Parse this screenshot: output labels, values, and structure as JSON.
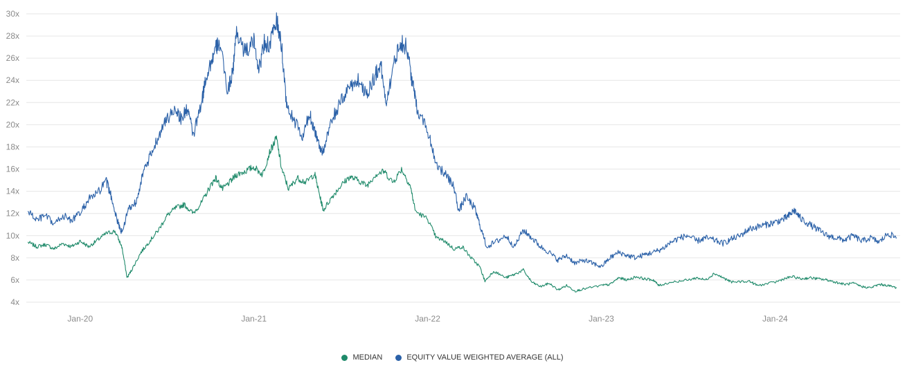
{
  "chart_data": {
    "type": "line",
    "title": "",
    "xlabel": "",
    "ylabel": "",
    "ylim": [
      4,
      30
    ],
    "xlim": [
      2019.69,
      2024.72
    ],
    "grid": true,
    "legend_position": "bottom-center",
    "y_ticks": [
      {
        "value": 4,
        "label": "4x"
      },
      {
        "value": 6,
        "label": "6x"
      },
      {
        "value": 8,
        "label": "8x"
      },
      {
        "value": 10,
        "label": "10x"
      },
      {
        "value": 12,
        "label": "12x"
      },
      {
        "value": 14,
        "label": "14x"
      },
      {
        "value": 16,
        "label": "16x"
      },
      {
        "value": 18,
        "label": "18x"
      },
      {
        "value": 20,
        "label": "20x"
      },
      {
        "value": 22,
        "label": "22x"
      },
      {
        "value": 24,
        "label": "24x"
      },
      {
        "value": 26,
        "label": "26x"
      },
      {
        "value": 28,
        "label": "28x"
      },
      {
        "value": 30,
        "label": "30x"
      }
    ],
    "x_ticks": [
      {
        "value": 2020.0,
        "label": "Jan-20"
      },
      {
        "value": 2021.0,
        "label": "Jan-21"
      },
      {
        "value": 2022.0,
        "label": "Jan-22"
      },
      {
        "value": 2023.0,
        "label": "Jan-23"
      },
      {
        "value": 2024.0,
        "label": "Jan-24"
      }
    ],
    "series": [
      {
        "name": "MEDIAN",
        "color": "#1f8a6a",
        "points": [
          [
            2019.7,
            9.4
          ],
          [
            2019.75,
            9.0
          ],
          [
            2019.8,
            9.2
          ],
          [
            2019.85,
            8.8
          ],
          [
            2019.9,
            9.3
          ],
          [
            2019.95,
            9.0
          ],
          [
            2020.0,
            9.5
          ],
          [
            2020.05,
            9.0
          ],
          [
            2020.1,
            9.6
          ],
          [
            2020.15,
            10.2
          ],
          [
            2020.2,
            10.4
          ],
          [
            2020.24,
            9.0
          ],
          [
            2020.27,
            6.2
          ],
          [
            2020.3,
            7.0
          ],
          [
            2020.35,
            8.5
          ],
          [
            2020.4,
            9.5
          ],
          [
            2020.45,
            10.5
          ],
          [
            2020.5,
            11.8
          ],
          [
            2020.55,
            12.5
          ],
          [
            2020.6,
            12.8
          ],
          [
            2020.65,
            12.0
          ],
          [
            2020.7,
            13.0
          ],
          [
            2020.75,
            14.5
          ],
          [
            2020.78,
            15.2
          ],
          [
            2020.82,
            14.2
          ],
          [
            2020.86,
            14.8
          ],
          [
            2020.9,
            15.5
          ],
          [
            2020.95,
            15.8
          ],
          [
            2021.0,
            16.2
          ],
          [
            2021.05,
            15.5
          ],
          [
            2021.09,
            17.5
          ],
          [
            2021.13,
            18.8
          ],
          [
            2021.16,
            16.0
          ],
          [
            2021.2,
            14.2
          ],
          [
            2021.25,
            15.2
          ],
          [
            2021.3,
            14.8
          ],
          [
            2021.35,
            15.6
          ],
          [
            2021.38,
            13.5
          ],
          [
            2021.4,
            12.3
          ],
          [
            2021.45,
            13.5
          ],
          [
            2021.5,
            14.5
          ],
          [
            2021.55,
            15.3
          ],
          [
            2021.6,
            15.0
          ],
          [
            2021.65,
            14.5
          ],
          [
            2021.7,
            15.5
          ],
          [
            2021.75,
            15.8
          ],
          [
            2021.8,
            14.8
          ],
          [
            2021.85,
            16.0
          ],
          [
            2021.9,
            14.5
          ],
          [
            2021.93,
            12.2
          ],
          [
            2022.0,
            11.5
          ],
          [
            2022.05,
            9.8
          ],
          [
            2022.1,
            9.5
          ],
          [
            2022.15,
            8.8
          ],
          [
            2022.2,
            9.0
          ],
          [
            2022.25,
            8.0
          ],
          [
            2022.3,
            7.2
          ],
          [
            2022.33,
            5.9
          ],
          [
            2022.38,
            6.8
          ],
          [
            2022.45,
            6.2
          ],
          [
            2022.5,
            6.5
          ],
          [
            2022.55,
            6.9
          ],
          [
            2022.6,
            5.8
          ],
          [
            2022.65,
            5.4
          ],
          [
            2022.7,
            5.7
          ],
          [
            2022.75,
            5.1
          ],
          [
            2022.8,
            5.5
          ],
          [
            2022.85,
            5.0
          ],
          [
            2022.9,
            5.2
          ],
          [
            2023.0,
            5.5
          ],
          [
            2023.05,
            5.6
          ],
          [
            2023.1,
            6.2
          ],
          [
            2023.15,
            6.0
          ],
          [
            2023.2,
            6.3
          ],
          [
            2023.25,
            6.1
          ],
          [
            2023.3,
            6.0
          ],
          [
            2023.33,
            5.5
          ],
          [
            2023.4,
            5.8
          ],
          [
            2023.5,
            6.0
          ],
          [
            2023.55,
            6.2
          ],
          [
            2023.6,
            6.0
          ],
          [
            2023.65,
            6.6
          ],
          [
            2023.7,
            6.2
          ],
          [
            2023.75,
            5.8
          ],
          [
            2023.85,
            5.9
          ],
          [
            2023.9,
            5.5
          ],
          [
            2024.0,
            5.8
          ],
          [
            2024.05,
            6.1
          ],
          [
            2024.1,
            6.3
          ],
          [
            2024.15,
            6.1
          ],
          [
            2024.2,
            6.2
          ],
          [
            2024.25,
            6.1
          ],
          [
            2024.3,
            6.0
          ],
          [
            2024.35,
            5.8
          ],
          [
            2024.4,
            5.6
          ],
          [
            2024.45,
            5.7
          ],
          [
            2024.5,
            5.4
          ],
          [
            2024.55,
            5.3
          ],
          [
            2024.6,
            5.6
          ],
          [
            2024.65,
            5.5
          ],
          [
            2024.7,
            5.3
          ]
        ]
      },
      {
        "name": "EQUITY VALUE WEIGHTED AVERAGE (ALL)",
        "color": "#2b61a8",
        "points": [
          [
            2019.7,
            12.2
          ],
          [
            2019.75,
            11.4
          ],
          [
            2019.8,
            11.8
          ],
          [
            2019.85,
            11.0
          ],
          [
            2019.9,
            11.8
          ],
          [
            2019.95,
            11.4
          ],
          [
            2020.0,
            12.0
          ],
          [
            2020.05,
            13.3
          ],
          [
            2020.1,
            13.8
          ],
          [
            2020.15,
            14.9
          ],
          [
            2020.18,
            13.5
          ],
          [
            2020.22,
            11.0
          ],
          [
            2020.24,
            10.3
          ],
          [
            2020.28,
            12.5
          ],
          [
            2020.32,
            13.0
          ],
          [
            2020.36,
            15.5
          ],
          [
            2020.4,
            17.0
          ],
          [
            2020.45,
            19.0
          ],
          [
            2020.5,
            20.5
          ],
          [
            2020.55,
            21.5
          ],
          [
            2020.58,
            20.5
          ],
          [
            2020.62,
            21.5
          ],
          [
            2020.65,
            19.0
          ],
          [
            2020.7,
            22.0
          ],
          [
            2020.72,
            24.0
          ],
          [
            2020.75,
            25.5
          ],
          [
            2020.78,
            26.8
          ],
          [
            2020.8,
            27.5
          ],
          [
            2020.85,
            23.0
          ],
          [
            2020.88,
            25.0
          ],
          [
            2020.9,
            28.5
          ],
          [
            2020.95,
            26.5
          ],
          [
            2021.0,
            27.5
          ],
          [
            2021.03,
            25.0
          ],
          [
            2021.06,
            27.5
          ],
          [
            2021.09,
            27.0
          ],
          [
            2021.13,
            29.5
          ],
          [
            2021.16,
            27.0
          ],
          [
            2021.19,
            21.5
          ],
          [
            2021.23,
            20.5
          ],
          [
            2021.28,
            18.8
          ],
          [
            2021.32,
            21.0
          ],
          [
            2021.35,
            19.5
          ],
          [
            2021.38,
            18.0
          ],
          [
            2021.4,
            17.5
          ],
          [
            2021.45,
            20.5
          ],
          [
            2021.5,
            22.0
          ],
          [
            2021.55,
            23.5
          ],
          [
            2021.6,
            24.0
          ],
          [
            2021.65,
            22.8
          ],
          [
            2021.7,
            24.5
          ],
          [
            2021.73,
            25.5
          ],
          [
            2021.76,
            22.0
          ],
          [
            2021.8,
            25.0
          ],
          [
            2021.84,
            27.5
          ],
          [
            2021.88,
            27.0
          ],
          [
            2021.91,
            24.0
          ],
          [
            2021.94,
            21.5
          ],
          [
            2022.0,
            19.5
          ],
          [
            2022.05,
            16.5
          ],
          [
            2022.1,
            15.5
          ],
          [
            2022.15,
            14.5
          ],
          [
            2022.18,
            12.2
          ],
          [
            2022.22,
            13.5
          ],
          [
            2022.27,
            12.5
          ],
          [
            2022.3,
            11.0
          ],
          [
            2022.34,
            9.0
          ],
          [
            2022.4,
            9.5
          ],
          [
            2022.45,
            10.0
          ],
          [
            2022.5,
            9.0
          ],
          [
            2022.55,
            10.5
          ],
          [
            2022.6,
            9.8
          ],
          [
            2022.65,
            9.0
          ],
          [
            2022.7,
            8.5
          ],
          [
            2022.75,
            7.8
          ],
          [
            2022.8,
            8.2
          ],
          [
            2022.85,
            7.5
          ],
          [
            2022.9,
            7.8
          ],
          [
            2022.95,
            7.5
          ],
          [
            2023.0,
            7.2
          ],
          [
            2023.05,
            8.0
          ],
          [
            2023.1,
            8.5
          ],
          [
            2023.15,
            8.2
          ],
          [
            2023.2,
            8.0
          ],
          [
            2023.25,
            8.3
          ],
          [
            2023.3,
            8.5
          ],
          [
            2023.35,
            8.8
          ],
          [
            2023.4,
            9.4
          ],
          [
            2023.45,
            9.8
          ],
          [
            2023.5,
            10.0
          ],
          [
            2023.55,
            9.5
          ],
          [
            2023.6,
            9.8
          ],
          [
            2023.65,
            9.6
          ],
          [
            2023.7,
            9.3
          ],
          [
            2023.75,
            9.7
          ],
          [
            2023.8,
            10.0
          ],
          [
            2023.85,
            10.6
          ],
          [
            2023.9,
            10.8
          ],
          [
            2023.95,
            11.0
          ],
          [
            2024.0,
            11.2
          ],
          [
            2024.05,
            11.5
          ],
          [
            2024.08,
            11.8
          ],
          [
            2024.11,
            12.3
          ],
          [
            2024.15,
            11.5
          ],
          [
            2024.2,
            11.0
          ],
          [
            2024.25,
            10.5
          ],
          [
            2024.3,
            10.0
          ],
          [
            2024.35,
            9.8
          ],
          [
            2024.4,
            9.6
          ],
          [
            2024.45,
            10.0
          ],
          [
            2024.5,
            9.5
          ],
          [
            2024.55,
            9.8
          ],
          [
            2024.6,
            9.4
          ],
          [
            2024.65,
            10.2
          ],
          [
            2024.7,
            9.8
          ]
        ]
      }
    ]
  },
  "legend": {
    "items": [
      {
        "label": "MEDIAN",
        "color": "#1f8a6a"
      },
      {
        "label": "EQUITY VALUE WEIGHTED AVERAGE (ALL)",
        "color": "#2b61a8"
      }
    ]
  }
}
